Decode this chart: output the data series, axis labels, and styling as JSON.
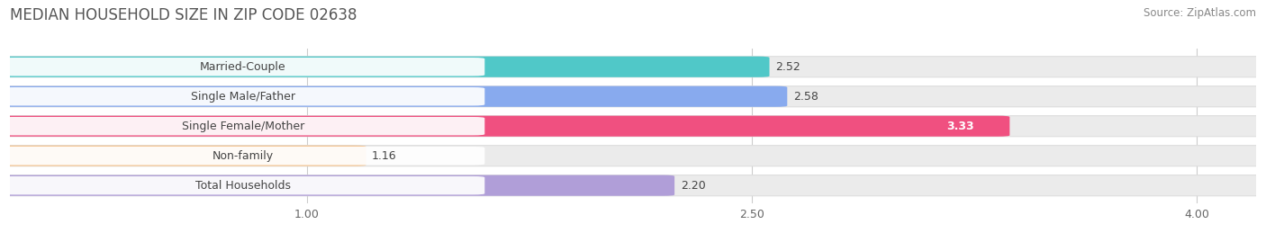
{
  "title": "MEDIAN HOUSEHOLD SIZE IN ZIP CODE 02638",
  "source": "Source: ZipAtlas.com",
  "categories": [
    "Married-Couple",
    "Single Male/Father",
    "Single Female/Mother",
    "Non-family",
    "Total Households"
  ],
  "values": [
    2.52,
    2.58,
    3.33,
    1.16,
    2.2
  ],
  "bar_colors": [
    "#50c8c8",
    "#88aaee",
    "#f05080",
    "#f5c898",
    "#b09ed8"
  ],
  "bar_edge_colors": [
    "#38b0b0",
    "#6688cc",
    "#cc3060",
    "#d8a868",
    "#9878c0"
  ],
  "value_label_colors": [
    "#444444",
    "#444444",
    "#ffffff",
    "#444444",
    "#444444"
  ],
  "xlim_data": [
    0.0,
    4.2
  ],
  "xmin": 0.0,
  "xmax": 4.2,
  "xticks": [
    1.0,
    2.5,
    4.0
  ],
  "background_color": "#ffffff",
  "row_bg_color": "#ebebeb",
  "row_border_color": "#dddddd",
  "title_fontsize": 12,
  "source_fontsize": 8.5,
  "label_fontsize": 9,
  "value_fontsize": 9
}
